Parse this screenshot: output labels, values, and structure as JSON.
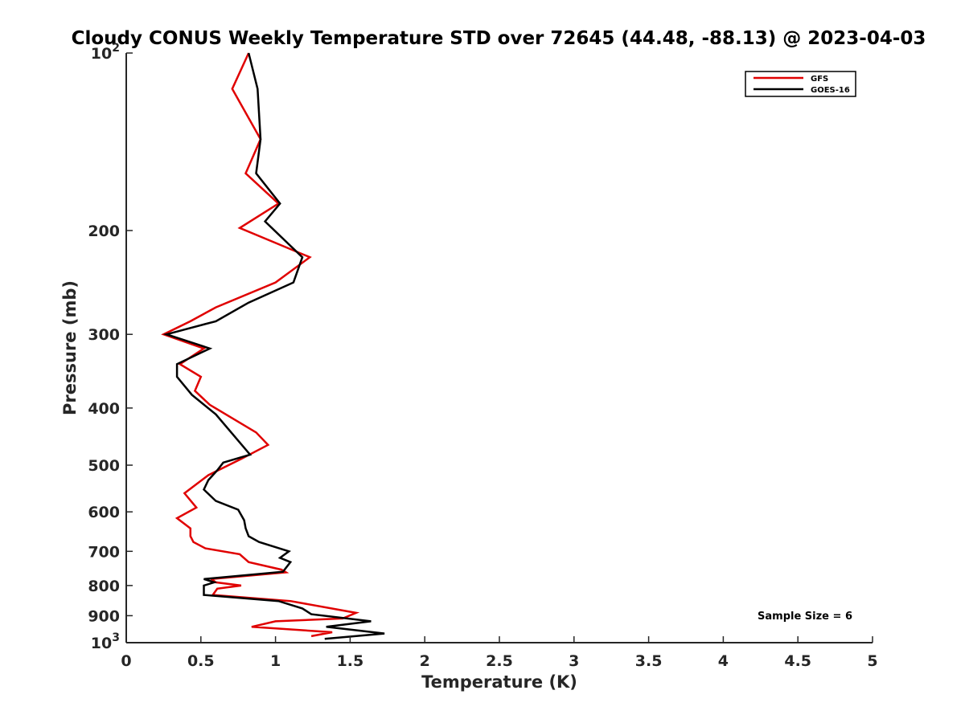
{
  "chart_data": {
    "type": "line",
    "title": "Cloudy CONUS Weekly Temperature STD over 72645 (44.48, -88.13) @ 2023-04-03",
    "xlabel": "Temperature (K)",
    "ylabel": "Pressure (mb)",
    "xlim": [
      0,
      5
    ],
    "ylim": [
      100,
      1000
    ],
    "y_scale": "log",
    "y_reversed": true,
    "grid": false,
    "legend_position": "top-right",
    "x_ticks": [
      "0",
      "0.5",
      "1",
      "1.5",
      "2",
      "2.5",
      "3",
      "3.5",
      "4",
      "4.5",
      "5"
    ],
    "y_ticks": [
      {
        "value": 100,
        "base": "10",
        "exp": "2"
      },
      {
        "value": 200,
        "label": "200"
      },
      {
        "value": 300,
        "label": "300"
      },
      {
        "value": 400,
        "label": "400"
      },
      {
        "value": 500,
        "label": "500"
      },
      {
        "value": 600,
        "label": "600"
      },
      {
        "value": 700,
        "label": "700"
      },
      {
        "value": 800,
        "label": "800"
      },
      {
        "value": 900,
        "label": "900"
      },
      {
        "value": 1000,
        "base": "10",
        "exp": "3"
      }
    ],
    "annotation": "Sample Size = 6",
    "series": [
      {
        "name": "GFS",
        "color": "#e00000",
        "x": [
          0.82,
          0.71,
          0.9,
          0.8,
          1.02,
          0.76,
          1.23,
          1.0,
          0.6,
          0.43,
          0.25,
          0.52,
          0.36,
          0.5,
          0.46,
          0.56,
          0.87,
          0.95,
          0.77,
          0.55,
          0.39,
          0.47,
          0.34,
          0.43,
          0.43,
          0.45,
          0.53,
          0.76,
          0.82,
          1.04,
          1.07,
          0.57,
          0.6,
          0.77,
          0.61,
          0.58,
          1.1,
          1.54,
          1.45,
          1.0,
          0.84,
          1.38,
          1.24
        ],
        "y": [
          100,
          115,
          140,
          160,
          180,
          198,
          222,
          245,
          270,
          285,
          300,
          317,
          337,
          354,
          374,
          395,
          440,
          462,
          488,
          520,
          558,
          590,
          615,
          640,
          660,
          675,
          692,
          708,
          730,
          752,
          760,
          780,
          790,
          800,
          810,
          830,
          850,
          890,
          910,
          920,
          940,
          960,
          975
        ]
      },
      {
        "name": "GOES-16",
        "color": "#000000",
        "x": [
          0.82,
          0.88,
          0.9,
          0.87,
          1.03,
          0.93,
          1.18,
          1.12,
          0.82,
          0.6,
          0.27,
          0.56,
          0.34,
          0.34,
          0.44,
          0.6,
          0.83,
          0.65,
          0.61,
          0.55,
          0.52,
          0.6,
          0.75,
          0.79,
          0.8,
          0.82,
          0.89,
          1.09,
          1.03,
          1.1,
          1.05,
          0.52,
          0.59,
          0.52,
          0.52,
          1.02,
          1.18,
          1.24,
          1.64,
          1.34,
          1.73,
          1.33
        ],
        "y": [
          100,
          115,
          140,
          160,
          180,
          193,
          222,
          245,
          265,
          285,
          300,
          317,
          337,
          354,
          380,
          410,
          480,
          495,
          510,
          530,
          550,
          575,
          595,
          620,
          640,
          660,
          675,
          700,
          718,
          730,
          758,
          780,
          790,
          800,
          830,
          850,
          875,
          895,
          920,
          940,
          965,
          985
        ]
      }
    ]
  }
}
